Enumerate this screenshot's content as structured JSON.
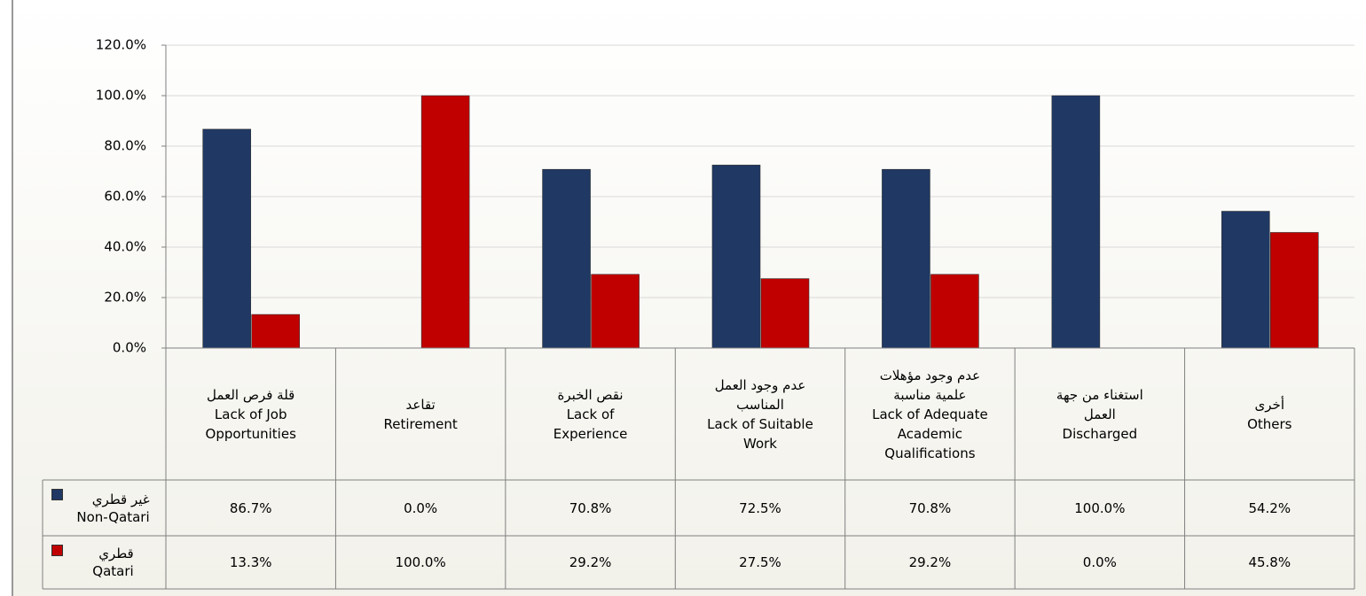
{
  "chart_data": {
    "type": "bar",
    "categories": [
      "قلة فرص العمل\nLack of Job\nOpportunities",
      "تقاعد\nRetirement",
      "نقص الخبرة\nLack of\nExperience",
      "عدم وجود العمل\nالمناسب\nLack of Suitable\nWork",
      "عدم وجود مؤهلات\nعلمية مناسبة\nLack of Adequate\nAcademic\nQualifications",
      "استغناء من جهة\nالعمل\nDischarged",
      "أخرى\nOthers"
    ],
    "series": [
      {
        "name": "غير قطري\nNon-Qatari",
        "color": "#1f3864",
        "values": [
          86.7,
          0.0,
          70.8,
          72.5,
          70.8,
          100.0,
          54.2
        ],
        "value_labels": [
          "86.7%",
          "0.0%",
          "70.8%",
          "72.5%",
          "70.8%",
          "100.0%",
          "54.2%"
        ]
      },
      {
        "name": "قطري\nQatari",
        "color": "#c00000",
        "values": [
          13.3,
          100.0,
          29.2,
          27.5,
          29.2,
          0.0,
          45.8
        ],
        "value_labels": [
          "13.3%",
          "100.0%",
          "29.2%",
          "27.5%",
          "29.2%",
          "0.0%",
          "45.8%"
        ]
      }
    ],
    "ylim": [
      0,
      120
    ],
    "yticks": [
      {
        "value": 0,
        "label": "0.0%"
      },
      {
        "value": 20,
        "label": "20.0%"
      },
      {
        "value": 40,
        "label": "40.0%"
      },
      {
        "value": 60,
        "label": "60.0%"
      },
      {
        "value": 80,
        "label": "80.0%"
      },
      {
        "value": 100,
        "label": "100.0%"
      },
      {
        "value": 120,
        "label": "120.0%"
      }
    ],
    "grid": true
  }
}
